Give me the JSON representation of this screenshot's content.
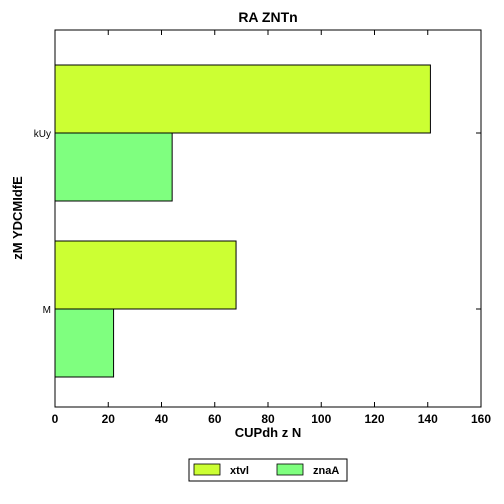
{
  "chart_data": {
    "type": "bar",
    "orientation": "horizontal",
    "title": "RA ZNTn",
    "xlabel": "CUPdh z N",
    "ylabel": "zM YDCMIdfE",
    "categories": [
      "kUy",
      "M"
    ],
    "series": [
      {
        "name": "xtvl",
        "values": [
          141,
          68
        ],
        "color": "#ccff33"
      },
      {
        "name": "znaA",
        "values": [
          44,
          22
        ],
        "color": "#7fff7f"
      }
    ],
    "xlim": [
      0,
      160
    ],
    "xticks": [
      0,
      20,
      40,
      60,
      80,
      100,
      120,
      140,
      160
    ],
    "grid": false,
    "legend_position": "bottom-center"
  }
}
